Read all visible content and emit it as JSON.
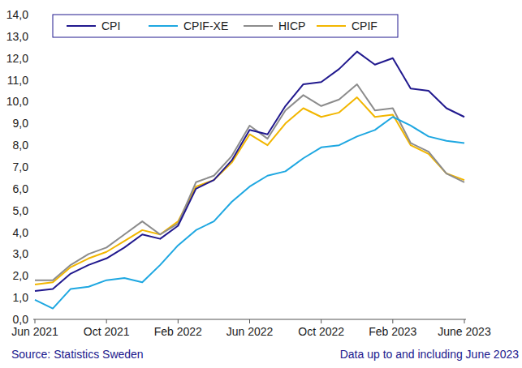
{
  "chart_data": {
    "type": "line",
    "categories": [
      "Jun 2021",
      null,
      null,
      null,
      "Oct 2021",
      null,
      null,
      null,
      "Feb 2022",
      null,
      null,
      null,
      "Jun 2022",
      null,
      null,
      null,
      "Oct 2022",
      null,
      null,
      null,
      "Feb 2023",
      null,
      null,
      null,
      "June 2023"
    ],
    "series": [
      {
        "name": "CPI",
        "color": "#21198e",
        "values": [
          1.3,
          1.4,
          2.1,
          2.5,
          2.8,
          3.3,
          3.9,
          3.7,
          4.3,
          6.0,
          6.4,
          7.3,
          8.7,
          8.5,
          9.8,
          10.8,
          10.9,
          11.5,
          12.3,
          11.7,
          12.0,
          10.6,
          10.5,
          9.7,
          9.3
        ]
      },
      {
        "name": "CPIF-XE",
        "color": "#1ea7e1",
        "values": [
          0.9,
          0.5,
          1.4,
          1.5,
          1.8,
          1.9,
          1.7,
          2.5,
          3.4,
          4.1,
          4.5,
          5.4,
          6.1,
          6.6,
          6.8,
          7.4,
          7.9,
          8.0,
          8.4,
          8.7,
          9.3,
          8.9,
          8.4,
          8.2,
          8.1
        ]
      },
      {
        "name": "HICP",
        "color": "#8c8c8c",
        "values": [
          1.8,
          1.8,
          2.5,
          3.0,
          3.3,
          3.9,
          4.5,
          3.9,
          4.4,
          6.3,
          6.6,
          7.5,
          8.9,
          8.3,
          9.6,
          10.3,
          9.8,
          10.1,
          10.8,
          9.6,
          9.7,
          8.1,
          7.7,
          6.7,
          6.3
        ]
      },
      {
        "name": "CPIF",
        "color": "#f2b600",
        "values": [
          1.6,
          1.7,
          2.4,
          2.8,
          3.1,
          3.6,
          4.1,
          3.9,
          4.5,
          6.1,
          6.4,
          7.2,
          8.5,
          8.0,
          9.0,
          9.7,
          9.3,
          9.5,
          10.2,
          9.3,
          9.4,
          8.0,
          7.6,
          6.7,
          6.4
        ]
      }
    ],
    "ylim": [
      0,
      14
    ],
    "yticks": [
      {
        "value": 0,
        "label": "0,0"
      },
      {
        "value": 1,
        "label": "1,0"
      },
      {
        "value": 2,
        "label": "2,0"
      },
      {
        "value": 3,
        "label": "3,0"
      },
      {
        "value": 4,
        "label": "4,0"
      },
      {
        "value": 5,
        "label": "5,0"
      },
      {
        "value": 6,
        "label": "6,0"
      },
      {
        "value": 7,
        "label": "7,0"
      },
      {
        "value": 8,
        "label": "8,0"
      },
      {
        "value": 9,
        "label": "9,0"
      },
      {
        "value": 10,
        "label": "10,0"
      },
      {
        "value": 11,
        "label": "11,0"
      },
      {
        "value": 12,
        "label": "12,0"
      },
      {
        "value": 13,
        "label": "13,0"
      },
      {
        "value": 14,
        "label": "14,0"
      }
    ],
    "grid": false,
    "legend": "top",
    "annotations": [
      "Source: Statistics Sweden",
      "Data up to and including June 2023"
    ]
  }
}
